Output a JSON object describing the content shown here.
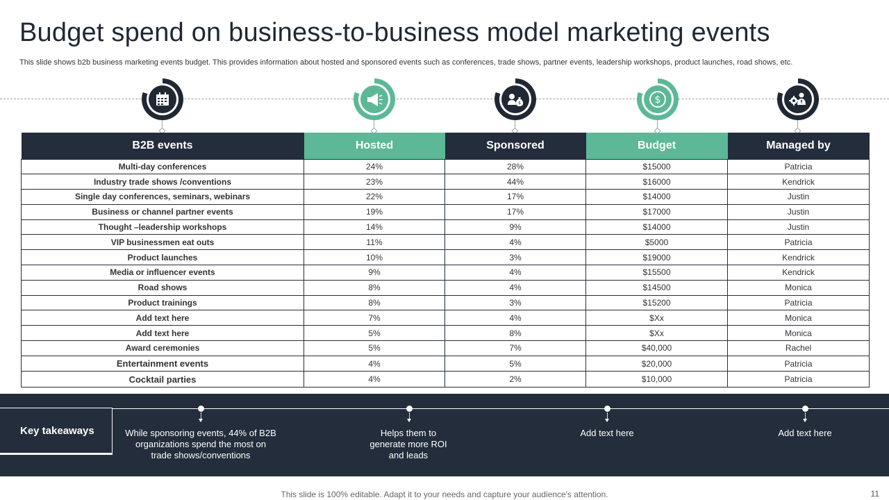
{
  "slide": {
    "title": "Budget spend on business-to-business model marketing events",
    "subtitle": "This slide shows b2b business marketing events budget. This provides information about hosted and sponsored events such as conferences, trade shows, partner events, leadership workshops, product launches, road shows, etc.",
    "footer_note": "This slide is 100% editable. Adapt it to your needs and capture your audience's attention.",
    "page_number": "11"
  },
  "icons": [
    {
      "name": "calendar-icon",
      "style": "dark"
    },
    {
      "name": "megaphone-icon",
      "style": "green"
    },
    {
      "name": "money-bag-icon",
      "style": "dark"
    },
    {
      "name": "dollar-coin-icon",
      "style": "green"
    },
    {
      "name": "gear-person-icon",
      "style": "dark"
    }
  ],
  "colors": {
    "dark": "#232d3b",
    "green": "#5cb896",
    "white": "#ffffff"
  },
  "table": {
    "headers": [
      "B2B events",
      "Hosted",
      "Sponsored",
      "Budget",
      "Managed by"
    ],
    "rows": [
      [
        "Multi-day  conferences",
        "24%",
        "28%",
        "$15000",
        "Patricia"
      ],
      [
        "Industry trade shows /conventions",
        "23%",
        "44%",
        "$16000",
        "Kendrick"
      ],
      [
        "Single day conferences, seminars, webinars",
        "22%",
        "17%",
        "$14000",
        "Justin"
      ],
      [
        "Business or channel partner events",
        "19%",
        "17%",
        "$17000",
        "Justin"
      ],
      [
        "Thought –leadership workshops",
        "14%",
        "9%",
        "$14000",
        "Justin"
      ],
      [
        "VIP businessmen eat outs",
        "11%",
        "4%",
        "$5000",
        "Patricia"
      ],
      [
        "Product launches",
        "10%",
        "3%",
        "$19000",
        "Kendrick"
      ],
      [
        "Media or influencer events",
        "9%",
        "4%",
        "$15500",
        "Kendrick"
      ],
      [
        "Road shows",
        "8%",
        "4%",
        "$14500",
        "Monica"
      ],
      [
        "Product trainings",
        "8%",
        "3%",
        "$15200",
        "Patricia"
      ],
      [
        "Add  text here",
        "7%",
        "4%",
        "$Xx",
        "Monica"
      ],
      [
        "Add  text here",
        "5%",
        "8%",
        "$Xx",
        "Monica"
      ],
      [
        "Award  ceremonies",
        "5%",
        "7%",
        "$40,000",
        "Rachel"
      ],
      [
        "Entertainment events",
        "4%",
        "5%",
        "$20,000",
        "Patricia"
      ],
      [
        "Cocktail parties",
        "4%",
        "2%",
        "$10,000",
        "Patricia"
      ]
    ]
  },
  "takeaways": {
    "label": "Key takeaways",
    "items": [
      "While sponsoring events, 44% of B2B organizations spend the most on trade shows/conventions",
      "Helps them to generate more ROI and leads",
      "Add text here",
      "Add text here"
    ]
  }
}
